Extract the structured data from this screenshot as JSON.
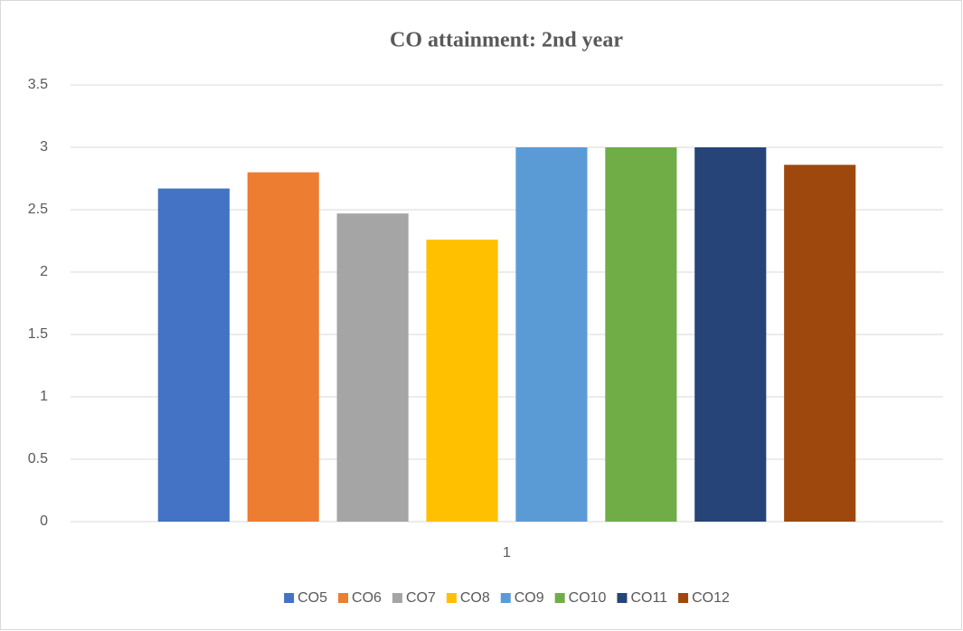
{
  "chart_data": {
    "type": "bar",
    "title": "CO attainment: 2nd year",
    "categories": [
      "1"
    ],
    "series": [
      {
        "name": "CO5",
        "color": "#4472c4",
        "values": [
          2.67
        ]
      },
      {
        "name": "CO6",
        "color": "#ed7d31",
        "values": [
          2.8
        ]
      },
      {
        "name": "CO7",
        "color": "#a5a5a5",
        "values": [
          2.47
        ]
      },
      {
        "name": "CO8",
        "color": "#ffc000",
        "values": [
          2.26
        ]
      },
      {
        "name": "CO9",
        "color": "#5b9bd5",
        "values": [
          3
        ]
      },
      {
        "name": "CO10",
        "color": "#70ad47",
        "values": [
          3
        ]
      },
      {
        "name": "CO11",
        "color": "#264478",
        "values": [
          3
        ]
      },
      {
        "name": "CO12",
        "color": "#9e480e",
        "values": [
          2.86
        ]
      }
    ],
    "ylim": [
      0,
      3.5
    ],
    "yticks": [
      0,
      0.5,
      1,
      1.5,
      2,
      2.5,
      3,
      3.5
    ],
    "grid": true,
    "legend": "bottom"
  }
}
